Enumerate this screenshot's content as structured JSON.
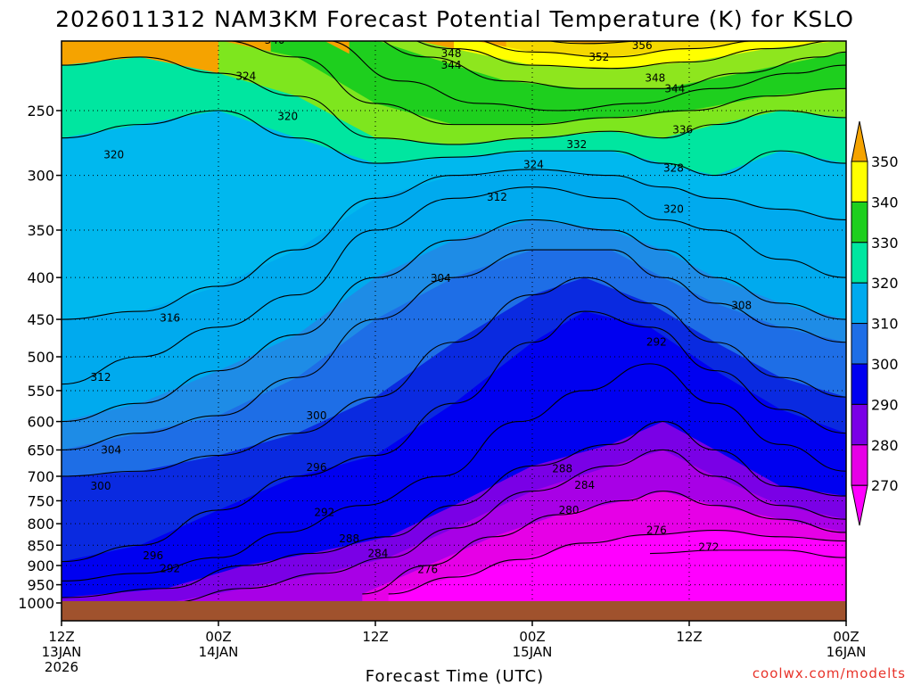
{
  "chart_data": {
    "type": "heatmap",
    "title": "2026011312 NAM3KM Forecast Potential Temperature (K) for KSLO",
    "xlabel": "Forecast Time (UTC)",
    "ylabel": "",
    "credit": "coolwx.com/modelts",
    "x_ticks": [
      {
        "l1": "12Z",
        "l2": "13JAN",
        "l3": "2026",
        "hour": 0
      },
      {
        "l1": "00Z",
        "l2": "14JAN",
        "l3": "",
        "hour": 12
      },
      {
        "l1": "12Z",
        "l2": "",
        "l3": "",
        "hour": 24
      },
      {
        "l1": "00Z",
        "l2": "15JAN",
        "l3": "",
        "hour": 36
      },
      {
        "l1": "12Z",
        "l2": "",
        "l3": "",
        "hour": 48
      },
      {
        "l1": "00Z",
        "l2": "16JAN",
        "l3": "",
        "hour": 60
      }
    ],
    "x_range_hours": [
      0,
      60
    ],
    "y_ticks": [
      "250",
      "300",
      "350",
      "400",
      "450",
      "500",
      "550",
      "600",
      "650",
      "700",
      "750",
      "800",
      "850",
      "900",
      "950",
      "1000"
    ],
    "y_range_hpa": [
      200,
      1000
    ],
    "y_scale": "log-pressure",
    "colorbar": {
      "labels": [
        "350",
        "340",
        "330",
        "320",
        "310",
        "300",
        "290",
        "280",
        "270"
      ],
      "colors": [
        "#f5a300",
        "#ffff00",
        "#1ecf1e",
        "#00e6a0",
        "#00aaee",
        "#1e6ee6",
        "#0000f0",
        "#7a00e6",
        "#e600e6",
        "#ff00ff"
      ]
    },
    "band_colors": {
      "270": "#ff00ff",
      "276": "#e600e6",
      "280": "#a800e6",
      "286": "#7a00e6",
      "290": "#0000f0",
      "296": "#0a2ae0",
      "300": "#1e6ee6",
      "306": "#1e8ce6",
      "310": "#00aaee",
      "316": "#00b8ee",
      "320": "#00e6a0",
      "326": "#7ee61e",
      "330": "#1ecf1e",
      "336": "#8ee61e",
      "340": "#ffff00",
      "346": "#f5d800",
      "350": "#f5a300"
    },
    "isotherms": [
      {
        "k": 272,
        "pts": [
          [
            45,
            870
          ],
          [
            50,
            862
          ],
          [
            55,
            862
          ],
          [
            60,
            880
          ]
        ]
      },
      {
        "k": 276,
        "pts": [
          [
            25,
            975
          ],
          [
            30,
            930
          ],
          [
            35,
            885
          ],
          [
            40,
            845
          ],
          [
            45,
            825
          ],
          [
            50,
            815
          ],
          [
            55,
            830
          ],
          [
            60,
            840
          ]
        ]
      },
      {
        "k": 280,
        "pts": [
          [
            23,
            975
          ],
          [
            28,
            900
          ],
          [
            33,
            830
          ],
          [
            38,
            780
          ],
          [
            43,
            750
          ],
          [
            46,
            730
          ],
          [
            50,
            760
          ],
          [
            55,
            790
          ],
          [
            60,
            820
          ]
        ]
      },
      {
        "k": 284,
        "pts": [
          [
            8,
            1000
          ],
          [
            14,
            960
          ],
          [
            20,
            920
          ],
          [
            25,
            880
          ],
          [
            30,
            810
          ],
          [
            36,
            730
          ],
          [
            42,
            680
          ],
          [
            46,
            650
          ],
          [
            50,
            700
          ],
          [
            55,
            760
          ],
          [
            60,
            790
          ]
        ]
      },
      {
        "k": 288,
        "pts": [
          [
            0,
            985
          ],
          [
            8,
            960
          ],
          [
            14,
            900
          ],
          [
            19,
            870
          ],
          [
            25,
            830
          ],
          [
            30,
            760
          ],
          [
            36,
            680
          ],
          [
            42,
            640
          ],
          [
            46,
            600
          ],
          [
            50,
            650
          ],
          [
            55,
            720
          ],
          [
            60,
            740
          ]
        ]
      },
      {
        "k": 292,
        "pts": [
          [
            0,
            940
          ],
          [
            6,
            920
          ],
          [
            12,
            880
          ],
          [
            17,
            820
          ],
          [
            23,
            760
          ],
          [
            29,
            700
          ],
          [
            35,
            600
          ],
          [
            40,
            550
          ],
          [
            45,
            510
          ],
          [
            50,
            570
          ],
          [
            55,
            640
          ],
          [
            60,
            690
          ]
        ]
      },
      {
        "k": 296,
        "pts": [
          [
            0,
            890
          ],
          [
            6,
            850
          ],
          [
            12,
            770
          ],
          [
            18,
            700
          ],
          [
            24,
            660
          ],
          [
            30,
            570
          ],
          [
            36,
            480
          ],
          [
            40,
            440
          ],
          [
            45,
            460
          ],
          [
            50,
            520
          ],
          [
            55,
            580
          ],
          [
            60,
            620
          ]
        ]
      },
      {
        "k": 300,
        "pts": [
          [
            0,
            700
          ],
          [
            6,
            690
          ],
          [
            12,
            660
          ],
          [
            18,
            620
          ],
          [
            24,
            560
          ],
          [
            30,
            480
          ],
          [
            36,
            420
          ],
          [
            40,
            400
          ],
          [
            45,
            430
          ],
          [
            50,
            480
          ],
          [
            55,
            530
          ],
          [
            60,
            560
          ]
        ]
      },
      {
        "k": 304,
        "pts": [
          [
            0,
            650
          ],
          [
            6,
            620
          ],
          [
            12,
            590
          ],
          [
            18,
            530
          ],
          [
            24,
            450
          ],
          [
            30,
            400
          ],
          [
            36,
            370
          ],
          [
            42,
            370
          ],
          [
            46,
            400
          ],
          [
            50,
            430
          ],
          [
            55,
            460
          ],
          [
            60,
            480
          ]
        ]
      },
      {
        "k": 308,
        "pts": [
          [
            0,
            600
          ],
          [
            6,
            570
          ],
          [
            12,
            520
          ],
          [
            18,
            470
          ],
          [
            24,
            400
          ],
          [
            30,
            360
          ],
          [
            36,
            340
          ],
          [
            42,
            350
          ],
          [
            46,
            370
          ],
          [
            50,
            400
          ],
          [
            55,
            430
          ],
          [
            60,
            450
          ]
        ]
      },
      {
        "k": 312,
        "pts": [
          [
            0,
            540
          ],
          [
            6,
            500
          ],
          [
            12,
            460
          ],
          [
            18,
            420
          ],
          [
            24,
            350
          ],
          [
            30,
            320
          ],
          [
            36,
            310
          ],
          [
            42,
            320
          ],
          [
            46,
            340
          ],
          [
            50,
            350
          ],
          [
            55,
            380
          ],
          [
            60,
            400
          ]
        ]
      },
      {
        "k": 316,
        "pts": [
          [
            0,
            450
          ],
          [
            6,
            440
          ],
          [
            12,
            410
          ],
          [
            18,
            370
          ],
          [
            24,
            320
          ],
          [
            30,
            300
          ],
          [
            36,
            295
          ],
          [
            42,
            300
          ],
          [
            46,
            310
          ],
          [
            50,
            320
          ],
          [
            55,
            330
          ],
          [
            60,
            340
          ]
        ]
      },
      {
        "k": 320,
        "pts": [
          [
            0,
            270
          ],
          [
            6,
            260
          ],
          [
            12,
            250
          ],
          [
            18,
            270
          ],
          [
            24,
            290
          ],
          [
            30,
            285
          ],
          [
            36,
            280
          ],
          [
            42,
            280
          ],
          [
            46,
            290
          ],
          [
            50,
            300
          ],
          [
            55,
            280
          ],
          [
            60,
            290
          ]
        ]
      },
      {
        "k": 324,
        "pts": [
          [
            0,
            220
          ],
          [
            6,
            215
          ],
          [
            12,
            225
          ],
          [
            18,
            240
          ],
          [
            24,
            270
          ],
          [
            30,
            275
          ],
          [
            36,
            270
          ],
          [
            42,
            265
          ],
          [
            46,
            270
          ],
          [
            50,
            260
          ],
          [
            55,
            250
          ],
          [
            60,
            255
          ]
        ]
      },
      {
        "k": 328,
        "pts": [
          [
            12,
            205
          ],
          [
            18,
            215
          ],
          [
            24,
            245
          ],
          [
            30,
            260
          ],
          [
            36,
            260
          ],
          [
            42,
            255
          ],
          [
            48,
            250
          ],
          [
            54,
            240
          ],
          [
            60,
            235
          ]
        ]
      },
      {
        "k": 332,
        "pts": [
          [
            16,
            200
          ],
          [
            20,
            205
          ],
          [
            26,
            230
          ],
          [
            32,
            245
          ],
          [
            38,
            250
          ],
          [
            44,
            245
          ],
          [
            50,
            235
          ],
          [
            56,
            225
          ],
          [
            60,
            220
          ]
        ]
      },
      {
        "k": 336,
        "pts": [
          [
            22,
            200
          ],
          [
            28,
            215
          ],
          [
            34,
            230
          ],
          [
            40,
            235
          ],
          [
            46,
            235
          ],
          [
            52,
            225
          ],
          [
            58,
            215
          ],
          [
            60,
            212
          ]
        ]
      },
      {
        "k": 340,
        "pts": [
          [
            24,
            200
          ],
          [
            30,
            210
          ],
          [
            36,
            220
          ],
          [
            42,
            222
          ],
          [
            48,
            218
          ],
          [
            54,
            210
          ],
          [
            60,
            205
          ]
        ]
      },
      {
        "k": 344,
        "pts": [
          [
            30,
            203
          ],
          [
            36,
            212
          ],
          [
            42,
            215
          ],
          [
            48,
            210
          ],
          [
            54,
            205
          ],
          [
            60,
            202
          ]
        ]
      },
      {
        "k": 348,
        "pts": [
          [
            34,
            203
          ],
          [
            40,
            207
          ],
          [
            46,
            205
          ],
          [
            52,
            202
          ],
          [
            58,
            201
          ]
        ]
      },
      {
        "k": 352,
        "pts": [
          [
            38,
            201
          ],
          [
            44,
            203
          ],
          [
            50,
            201
          ],
          [
            56,
            200
          ]
        ]
      }
    ],
    "contour_labels": [
      {
        "text": "340",
        "h": 16.3,
        "p": 205
      },
      {
        "text": "348",
        "h": 29.8,
        "p": 213
      },
      {
        "text": "344",
        "h": 29.8,
        "p": 220
      },
      {
        "text": "352",
        "h": 41.1,
        "p": 215
      },
      {
        "text": "356",
        "h": 44.4,
        "p": 208
      },
      {
        "text": "348",
        "h": 45.4,
        "p": 228
      },
      {
        "text": "344",
        "h": 46.9,
        "p": 235
      },
      {
        "text": "324",
        "h": 14.1,
        "p": 227
      },
      {
        "text": "320",
        "h": 17.3,
        "p": 254
      },
      {
        "text": "320",
        "h": 4.0,
        "p": 283
      },
      {
        "text": "336",
        "h": 47.5,
        "p": 264
      },
      {
        "text": "332",
        "h": 39.4,
        "p": 275
      },
      {
        "text": "328",
        "h": 46.8,
        "p": 294
      },
      {
        "text": "324",
        "h": 36.1,
        "p": 291
      },
      {
        "text": "312",
        "h": 33.3,
        "p": 319
      },
      {
        "text": "320",
        "h": 46.8,
        "p": 330
      },
      {
        "text": "304",
        "h": 29.0,
        "p": 401
      },
      {
        "text": "308",
        "h": 52.0,
        "p": 433
      },
      {
        "text": "316",
        "h": 8.3,
        "p": 448
      },
      {
        "text": "292",
        "h": 45.5,
        "p": 480
      },
      {
        "text": "312",
        "h": 3.0,
        "p": 530
      },
      {
        "text": "300",
        "h": 19.5,
        "p": 590
      },
      {
        "text": "304",
        "h": 3.8,
        "p": 650
      },
      {
        "text": "296",
        "h": 19.5,
        "p": 683
      },
      {
        "text": "288",
        "h": 38.3,
        "p": 685
      },
      {
        "text": "300",
        "h": 3.0,
        "p": 720
      },
      {
        "text": "284",
        "h": 40.0,
        "p": 718
      },
      {
        "text": "280",
        "h": 38.8,
        "p": 770
      },
      {
        "text": "292",
        "h": 20.1,
        "p": 775
      },
      {
        "text": "276",
        "h": 45.5,
        "p": 815
      },
      {
        "text": "288",
        "h": 22.0,
        "p": 835
      },
      {
        "text": "272",
        "h": 49.5,
        "p": 855
      },
      {
        "text": "284",
        "h": 24.2,
        "p": 870
      },
      {
        "text": "296",
        "h": 7.0,
        "p": 875
      },
      {
        "text": "276",
        "h": 28.0,
        "p": 910
      },
      {
        "text": "292",
        "h": 8.3,
        "p": 908
      }
    ]
  }
}
